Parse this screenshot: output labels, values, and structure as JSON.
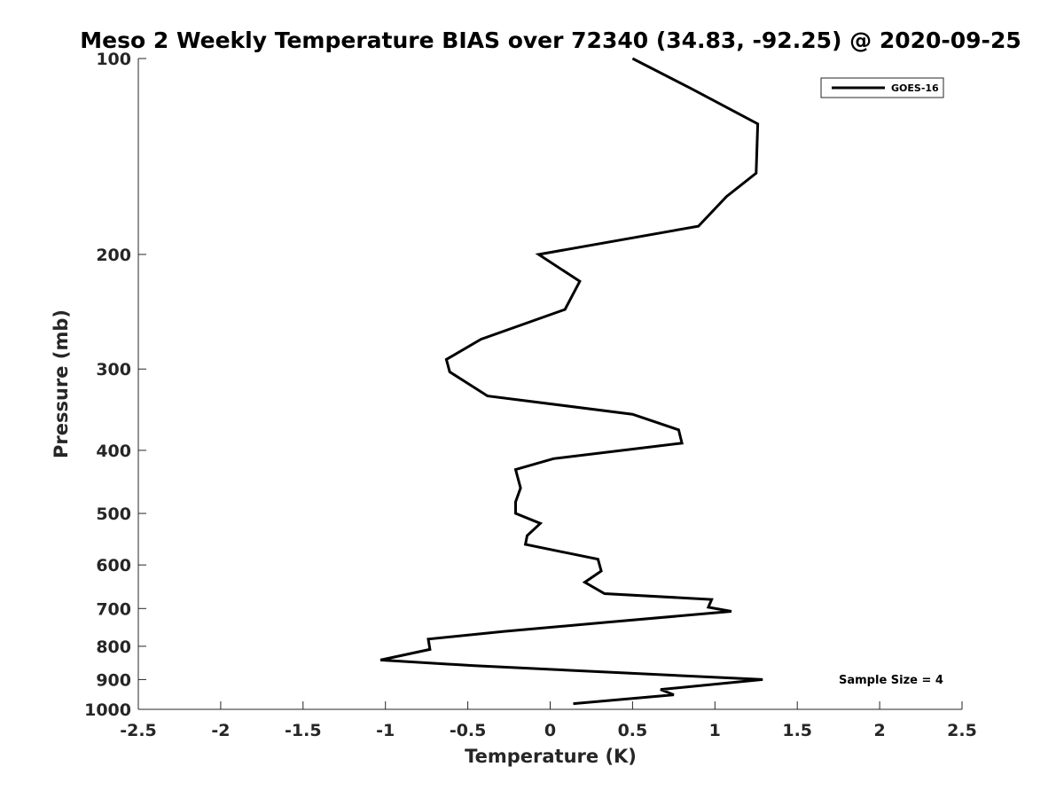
{
  "chart_data": {
    "type": "line",
    "title": "Meso 2 Weekly Temperature BIAS over 72340 (34.83, -92.25) @ 2020-09-25",
    "xlabel": "Temperature (K)",
    "ylabel": "Pressure (mb)",
    "xlim": [
      -2.5,
      2.5
    ],
    "ylim": [
      1000,
      100
    ],
    "y_scale": "log",
    "y_reversed": true,
    "grid": false,
    "legend_position": "top-right",
    "x_ticks": [
      "-2.5",
      "-2",
      "-1.5",
      "-1",
      "-0.5",
      "0",
      "0.5",
      "1",
      "1.5",
      "2",
      "2.5"
    ],
    "x_tick_values": [
      -2.5,
      -2,
      -1.5,
      -1,
      -0.5,
      0,
      0.5,
      1,
      1.5,
      2,
      2.5
    ],
    "y_ticks": [
      "100",
      "200",
      "300",
      "400",
      "500",
      "600",
      "700",
      "800",
      "900",
      "1000"
    ],
    "y_tick_values": [
      100,
      200,
      300,
      400,
      500,
      600,
      700,
      800,
      900,
      1000
    ],
    "series": [
      {
        "name": "GOES-16",
        "color": "#000000",
        "x": [
          0.5,
          0.85,
          1.26,
          1.25,
          1.07,
          0.9,
          -0.07,
          0.18,
          0.09,
          -0.42,
          -0.63,
          -0.61,
          -0.38,
          0.5,
          0.78,
          0.8,
          0.02,
          -0.21,
          -0.18,
          -0.21,
          -0.21,
          -0.06,
          -0.14,
          -0.15,
          0.29,
          0.31,
          0.21,
          0.33,
          0.98,
          0.96,
          1.1,
          0.34,
          -0.28,
          -0.74,
          -0.73,
          -1.03,
          -0.46,
          1.29,
          0.67,
          0.75,
          0.14
        ],
        "y": [
          100,
          111,
          126,
          150,
          163,
          181,
          200,
          220,
          243,
          270,
          290,
          303,
          330,
          352,
          372,
          390,
          412,
          428,
          457,
          480,
          500,
          518,
          541,
          558,
          588,
          613,
          638,
          664,
          678,
          697,
          707,
          735,
          759,
          780,
          809,
          840,
          857,
          900,
          932,
          950,
          980
        ]
      }
    ],
    "annotations": [
      {
        "text": "Sample Size = 4",
        "x": 1.75,
        "y": 900
      }
    ]
  }
}
